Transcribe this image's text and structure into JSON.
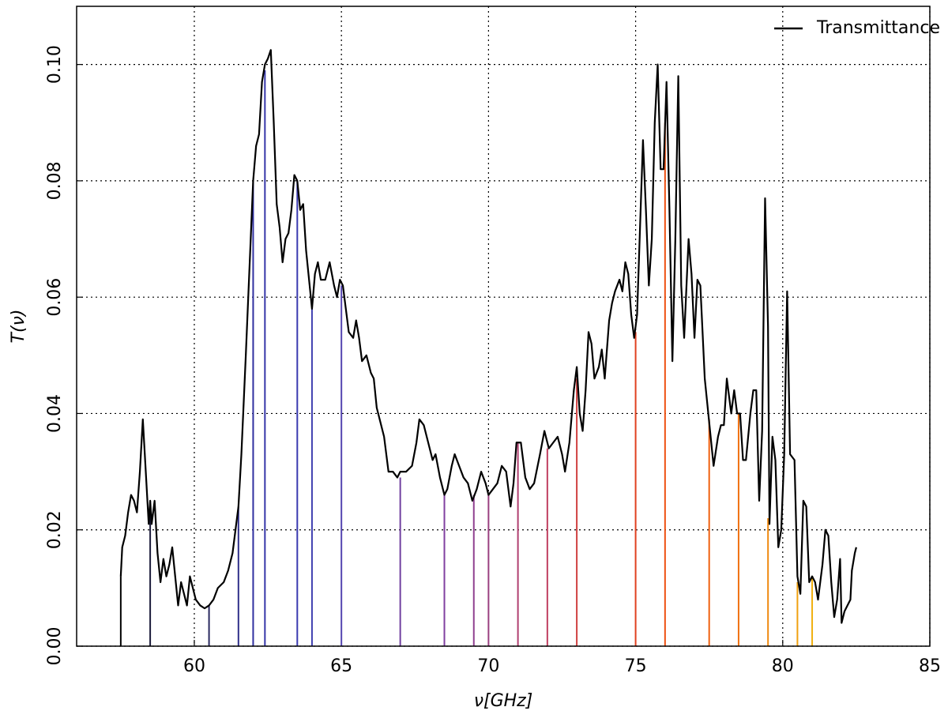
{
  "chart_data": {
    "type": "line",
    "xlabel": "ν[GHz]",
    "ylabel": "T(ν)",
    "xlim": [
      56,
      85
    ],
    "ylim": [
      0,
      0.11
    ],
    "xticks": [
      60,
      65,
      70,
      75,
      80,
      85
    ],
    "yticks": [
      {
        "value": 0,
        "label": "0.00"
      },
      {
        "value": 0.02,
        "label": "0.02"
      },
      {
        "value": 0.04,
        "label": "0.04"
      },
      {
        "value": 0.06,
        "label": "0.06"
      },
      {
        "value": 0.08,
        "label": "0.08"
      },
      {
        "value": 0.1,
        "label": "0.10"
      }
    ],
    "grid": true,
    "legend": "upper right",
    "x": [
      57.5,
      57.55,
      57.65,
      57.75,
      57.85,
      57.95,
      58.05,
      58.15,
      58.25,
      58.35,
      58.45,
      58.5,
      58.55,
      58.65,
      58.75,
      58.85,
      58.95,
      59.05,
      59.15,
      59.25,
      59.35,
      59.45,
      59.55,
      59.65,
      59.75,
      59.85,
      59.95,
      60.05,
      60.2,
      60.35,
      60.5,
      60.65,
      60.8,
      61.0,
      61.15,
      61.3,
      61.4,
      61.5,
      61.6,
      61.75,
      61.9,
      62.0,
      62.1,
      62.2,
      62.3,
      62.4,
      62.5,
      62.6,
      62.7,
      62.8,
      62.9,
      63.0,
      63.1,
      63.2,
      63.3,
      63.4,
      63.5,
      63.6,
      63.7,
      63.8,
      63.9,
      64.0,
      64.1,
      64.2,
      64.3,
      64.45,
      64.6,
      64.75,
      64.85,
      64.95,
      65.05,
      65.15,
      65.25,
      65.4,
      65.5,
      65.6,
      65.7,
      65.85,
      66.0,
      66.1,
      66.2,
      66.3,
      66.45,
      66.6,
      66.75,
      66.9,
      67.0,
      67.2,
      67.4,
      67.55,
      67.65,
      67.8,
      67.95,
      68.1,
      68.2,
      68.35,
      68.5,
      68.6,
      68.75,
      68.85,
      69.0,
      69.15,
      69.3,
      69.45,
      69.6,
      69.75,
      69.9,
      70.0,
      70.15,
      70.3,
      70.45,
      70.6,
      70.75,
      70.85,
      70.95,
      71.1,
      71.25,
      71.4,
      71.55,
      71.75,
      71.9,
      72.05,
      72.2,
      72.35,
      72.5,
      72.6,
      72.75,
      72.9,
      73.0,
      73.1,
      73.2,
      73.3,
      73.4,
      73.5,
      73.6,
      73.75,
      73.85,
      73.95,
      74.1,
      74.2,
      74.3,
      74.45,
      74.55,
      74.65,
      74.75,
      74.85,
      74.95,
      75.05,
      75.15,
      75.25,
      75.35,
      75.45,
      75.55,
      75.65,
      75.75,
      75.85,
      75.95,
      76.05,
      76.15,
      76.25,
      76.35,
      76.45,
      76.55,
      76.65,
      76.8,
      76.9,
      77.0,
      77.1,
      77.2,
      77.35,
      77.45,
      77.55,
      77.65,
      77.8,
      77.9,
      78.0,
      78.1,
      78.25,
      78.35,
      78.45,
      78.55,
      78.65,
      78.75,
      78.9,
      79.0,
      79.1,
      79.2,
      79.3,
      79.4,
      79.5,
      79.55,
      79.65,
      79.75,
      79.85,
      79.95,
      80.05,
      80.15,
      80.25,
      80.4,
      80.5,
      80.6,
      80.7,
      80.8,
      80.9,
      81.0,
      81.1,
      81.2,
      81.35,
      81.45,
      81.55,
      81.65,
      81.75,
      81.85,
      81.95,
      82.0,
      82.1,
      82.3,
      82.35,
      82.45,
      82.5
    ],
    "series": [
      {
        "name": "Transmittance",
        "color": "#000000",
        "values": [
          0.012,
          0.017,
          0.019,
          0.023,
          0.026,
          0.025,
          0.023,
          0.03,
          0.039,
          0.03,
          0.021,
          0.025,
          0.021,
          0.025,
          0.016,
          0.011,
          0.015,
          0.012,
          0.014,
          0.017,
          0.012,
          0.007,
          0.011,
          0.009,
          0.007,
          0.012,
          0.01,
          0.008,
          0.007,
          0.0065,
          0.007,
          0.008,
          0.01,
          0.011,
          0.013,
          0.016,
          0.02,
          0.024,
          0.033,
          0.05,
          0.068,
          0.08,
          0.086,
          0.088,
          0.097,
          0.1,
          0.101,
          0.1025,
          0.09,
          0.076,
          0.072,
          0.066,
          0.07,
          0.071,
          0.075,
          0.081,
          0.08,
          0.075,
          0.076,
          0.068,
          0.063,
          0.058,
          0.064,
          0.066,
          0.063,
          0.063,
          0.066,
          0.062,
          0.06,
          0.063,
          0.062,
          0.058,
          0.054,
          0.053,
          0.056,
          0.053,
          0.049,
          0.05,
          0.047,
          0.046,
          0.041,
          0.039,
          0.036,
          0.03,
          0.03,
          0.029,
          0.03,
          0.03,
          0.031,
          0.035,
          0.039,
          0.038,
          0.035,
          0.032,
          0.033,
          0.029,
          0.026,
          0.027,
          0.031,
          0.033,
          0.031,
          0.029,
          0.028,
          0.025,
          0.027,
          0.03,
          0.028,
          0.026,
          0.027,
          0.028,
          0.031,
          0.03,
          0.024,
          0.028,
          0.035,
          0.035,
          0.029,
          0.027,
          0.028,
          0.033,
          0.037,
          0.034,
          0.035,
          0.036,
          0.033,
          0.03,
          0.035,
          0.044,
          0.048,
          0.04,
          0.037,
          0.044,
          0.054,
          0.052,
          0.046,
          0.048,
          0.051,
          0.046,
          0.056,
          0.059,
          0.061,
          0.063,
          0.061,
          0.066,
          0.064,
          0.057,
          0.053,
          0.057,
          0.072,
          0.087,
          0.075,
          0.062,
          0.07,
          0.09,
          0.1,
          0.082,
          0.082,
          0.097,
          0.075,
          0.049,
          0.07,
          0.098,
          0.062,
          0.053,
          0.07,
          0.064,
          0.053,
          0.063,
          0.062,
          0.046,
          0.041,
          0.036,
          0.031,
          0.036,
          0.038,
          0.038,
          0.046,
          0.04,
          0.044,
          0.04,
          0.04,
          0.032,
          0.032,
          0.04,
          0.044,
          0.044,
          0.025,
          0.037,
          0.077,
          0.055,
          0.021,
          0.036,
          0.032,
          0.017,
          0.02,
          0.033,
          0.061,
          0.033,
          0.032,
          0.012,
          0.009,
          0.025,
          0.024,
          0.011,
          0.012,
          0.011,
          0.008,
          0.014,
          0.02,
          0.019,
          0.011,
          0.005,
          0.008,
          0.015,
          0.004,
          0.006,
          0.008,
          0.013,
          0.016,
          0.017
        ]
      }
    ],
    "stems": {
      "x": [
        57.5,
        58.5,
        60.5,
        61.5,
        62,
        62.4,
        63.5,
        64,
        65,
        67,
        68.5,
        69.5,
        70,
        71,
        72,
        73,
        75,
        76,
        77.5,
        78.5,
        79.5,
        80.5,
        81
      ],
      "values": [
        0.012,
        0.025,
        0.007,
        0.024,
        0.08,
        0.099,
        0.08,
        0.059,
        0.062,
        0.029,
        0.026,
        0.026,
        0.026,
        0.035,
        0.034,
        0.046,
        0.054,
        0.09,
        0.039,
        0.04,
        0.022,
        0.011,
        0.012
      ],
      "colors": [
        "#000000",
        "#1b1b3a",
        "#2a2a60",
        "#30308a",
        "#3030a0",
        "#3535a8",
        "#3a3ab0",
        "#4040b0",
        "#5545b0",
        "#7040a0",
        "#8040a0",
        "#904090",
        "#9a4080",
        "#b04070",
        "#c04060",
        "#d04040",
        "#e04020",
        "#ee5010",
        "#f06010",
        "#f07010",
        "#f08a10",
        "#f0a010",
        "#f0b010"
      ]
    }
  }
}
